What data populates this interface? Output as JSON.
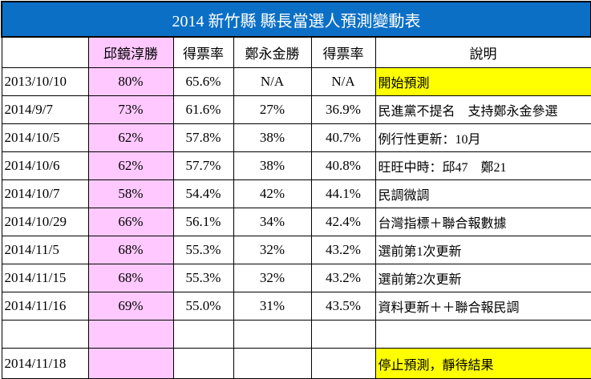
{
  "title": "2014 新竹縣 縣長當選人預測變動表",
  "headers": [
    "",
    "邱鏡淳勝",
    "得票率",
    "鄭永金勝",
    "得票率",
    "說明"
  ],
  "colors": {
    "title_bg": "#0b6fc6",
    "pink": "#ffc9ff",
    "yellow": "#ffff00"
  },
  "rows": [
    {
      "date": "2013/10/10",
      "qiu_win": "80%",
      "qiu_rate": "65.6%",
      "zheng_win": "N/A",
      "zheng_rate": "N/A",
      "note": "開始預測",
      "highlight": true
    },
    {
      "date": "2014/9/7",
      "qiu_win": "73%",
      "qiu_rate": "61.6%",
      "zheng_win": "27%",
      "zheng_rate": "36.9%",
      "note": "民進黨不提名　支持鄭永金參選",
      "highlight": false
    },
    {
      "date": "2014/10/5",
      "qiu_win": "62%",
      "qiu_rate": "57.8%",
      "zheng_win": "38%",
      "zheng_rate": "40.7%",
      "note": "例行性更新：10月",
      "highlight": false
    },
    {
      "date": "2014/10/6",
      "qiu_win": "62%",
      "qiu_rate": "57.7%",
      "zheng_win": "38%",
      "zheng_rate": "40.8%",
      "note": "旺旺中時：邱47　鄭21",
      "highlight": false
    },
    {
      "date": "2014/10/7",
      "qiu_win": "58%",
      "qiu_rate": "54.4%",
      "zheng_win": "42%",
      "zheng_rate": "44.1%",
      "note": "民調微調",
      "highlight": false
    },
    {
      "date": "2014/10/29",
      "qiu_win": "66%",
      "qiu_rate": "56.1%",
      "zheng_win": "34%",
      "zheng_rate": "42.4%",
      "note": "台灣指標＋聯合報數據",
      "highlight": false
    },
    {
      "date": "2014/11/5",
      "qiu_win": "68%",
      "qiu_rate": "55.3%",
      "zheng_win": "32%",
      "zheng_rate": "43.2%",
      "note": "選前第1次更新",
      "highlight": false
    },
    {
      "date": "2014/11/15",
      "qiu_win": "68%",
      "qiu_rate": "55.3%",
      "zheng_win": "32%",
      "zheng_rate": "43.2%",
      "note": "選前第2次更新",
      "highlight": false
    },
    {
      "date": "2014/11/16",
      "qiu_win": "69%",
      "qiu_rate": "55.0%",
      "zheng_win": "31%",
      "zheng_rate": "43.5%",
      "note": "資料更新＋＋聯合報民調",
      "highlight": false
    },
    {
      "date": "",
      "qiu_win": "",
      "qiu_rate": "",
      "zheng_win": "",
      "zheng_rate": "",
      "note": "",
      "highlight": false
    },
    {
      "date": "2014/11/18",
      "qiu_win": "",
      "qiu_rate": "",
      "zheng_win": "",
      "zheng_rate": "",
      "note": "停止預測，靜待結果",
      "highlight": true
    }
  ]
}
